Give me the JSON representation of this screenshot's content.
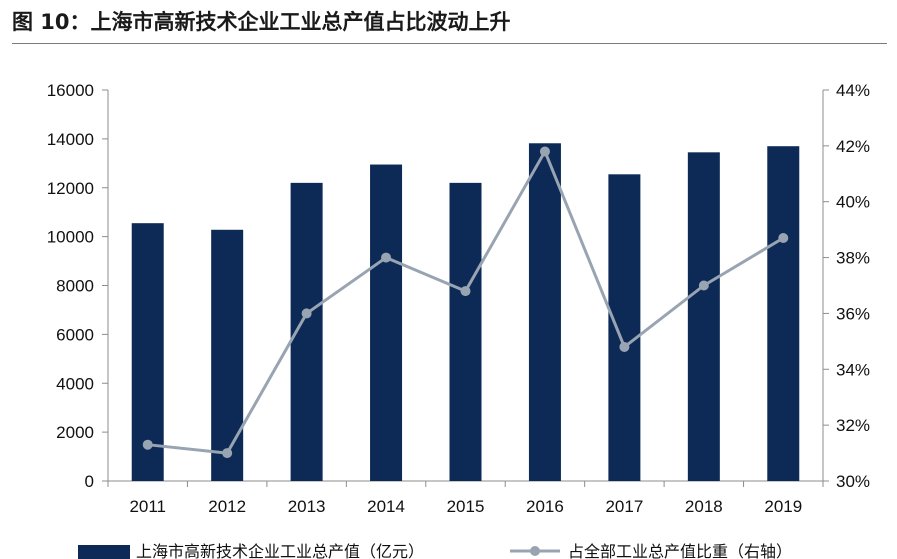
{
  "title": "图 10：上海市高新技术企业工业总产值占比波动上升",
  "chart_data": {
    "type": "bar",
    "title": "图 10：上海市高新技术企业工业总产值占比波动上升",
    "categories": [
      "2011",
      "2012",
      "2013",
      "2014",
      "2015",
      "2016",
      "2017",
      "2018",
      "2019"
    ],
    "series": [
      {
        "name": "上海市高新技术企业工业总产值（亿元）",
        "type": "bar",
        "axis": "left",
        "color": "#0d2a57",
        "values": [
          10550,
          10280,
          12200,
          12950,
          12200,
          13820,
          12550,
          13450,
          13700
        ]
      },
      {
        "name": "占全部工业总产值比重（右轴）",
        "type": "line",
        "axis": "right",
        "color": "#98a4b2",
        "values": [
          31.3,
          31.0,
          36.0,
          38.0,
          36.8,
          41.8,
          34.8,
          37.0,
          38.7
        ]
      }
    ],
    "y_left": {
      "min": 0,
      "max": 16000,
      "step": 2000,
      "ticks": [
        "0",
        "2000",
        "4000",
        "6000",
        "8000",
        "10000",
        "12000",
        "14000",
        "16000"
      ]
    },
    "y_right": {
      "min": 30,
      "max": 44,
      "step": 2,
      "ticks": [
        "30%",
        "32%",
        "34%",
        "36%",
        "38%",
        "40%",
        "42%",
        "44%"
      ]
    },
    "legend": {
      "position": "bottom",
      "entries": [
        "上海市高新技术企业工业总产值（亿元）",
        "占全部工业总产值比重（右轴）"
      ]
    }
  }
}
